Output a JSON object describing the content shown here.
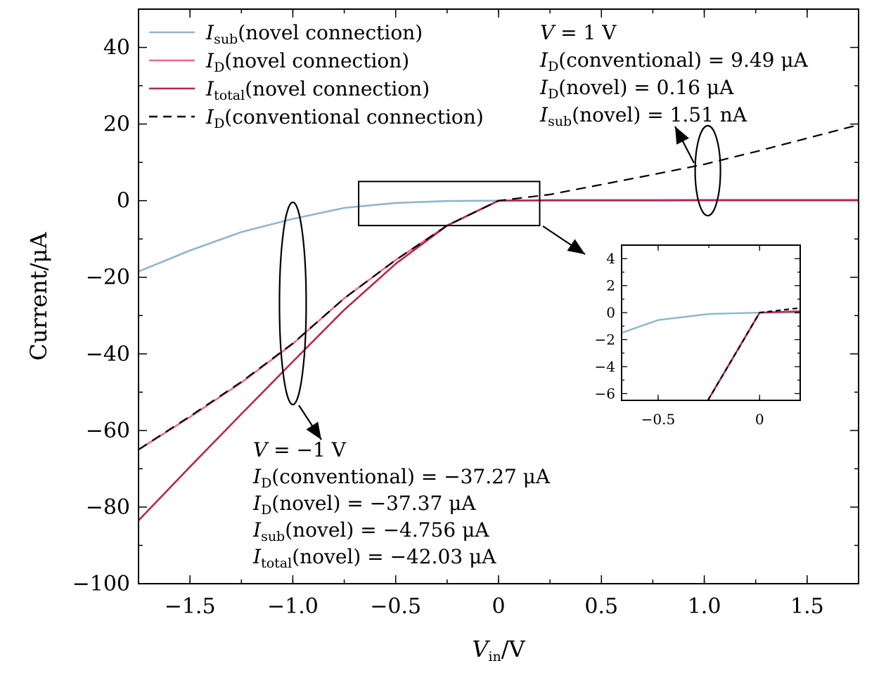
{
  "chart_data": [
    {
      "type": "line",
      "xlabel": {
        "main": "V",
        "sub": "in",
        "rest": "/V"
      },
      "ylabel": "Current/μA",
      "xlim": [
        -1.75,
        1.75
      ],
      "ylim": [
        -100,
        50
      ],
      "x_ticks": [
        -1.5,
        -1.0,
        -0.5,
        0,
        0.5,
        1.0,
        1.5
      ],
      "x_tick_labels": [
        "−1.5",
        "−1.0",
        "−0.5",
        "0",
        "0.5",
        "1.0",
        "1.5"
      ],
      "y_ticks": [
        -100,
        -80,
        -60,
        -40,
        -20,
        0,
        20,
        40
      ],
      "y_tick_labels": [
        "−100",
        "−80",
        "−60",
        "−40",
        "−20",
        "0",
        "20",
        "40"
      ],
      "legend_position": "top-left",
      "series": [
        {
          "id": "isub",
          "label": {
            "main": "I",
            "sub": "sub",
            "rest": "(novel connection)"
          },
          "color": "#8fb6cc",
          "dash": "solid",
          "x": [
            -1.75,
            -1.5,
            -1.25,
            -1.0,
            -0.75,
            -0.5,
            -0.25,
            0,
            0.25,
            0.5,
            0.75,
            1.0,
            1.25,
            1.5,
            1.75
          ],
          "y": [
            -18.5,
            -13.0,
            -8.2,
            -4.756,
            -1.9,
            -0.6,
            -0.1,
            0,
            0,
            0,
            0,
            0,
            0,
            0,
            0
          ]
        },
        {
          "id": "id_novel",
          "label": {
            "main": "I",
            "sub": "D",
            "rest": "(novel connection)"
          },
          "color": "#ec6a8c",
          "dash": "solid",
          "x": [
            -1.75,
            -1.5,
            -1.25,
            -1.0,
            -0.75,
            -0.5,
            -0.25,
            0,
            0.25,
            0.5,
            0.75,
            1.0,
            1.25,
            1.5,
            1.75
          ],
          "y": [
            -65.0,
            -56.5,
            -47.5,
            -37.37,
            -25.5,
            -15.5,
            -6.5,
            0,
            0.1,
            0.1,
            0.1,
            0.16,
            0.16,
            0.16,
            0.16
          ]
        },
        {
          "id": "itotal",
          "label": {
            "main": "I",
            "sub": "total",
            "rest": "(novel connection)"
          },
          "color": "#b8264f",
          "dash": "solid",
          "x": [
            -1.75,
            -1.5,
            -1.25,
            -1.0,
            -0.75,
            -0.5,
            -0.25,
            0,
            0.25,
            0.5,
            0.75,
            1.0,
            1.25,
            1.5,
            1.75
          ],
          "y": [
            -83.5,
            -69.5,
            -55.7,
            -42.03,
            -28.5,
            -16.5,
            -6.5,
            0,
            0.1,
            0.1,
            0.1,
            0.16,
            0.16,
            0.16,
            0.16
          ]
        },
        {
          "id": "id_conv",
          "label": {
            "main": "I",
            "sub": "D",
            "rest": "(conventional connection)"
          },
          "color": "#000000",
          "dash": "dashed",
          "x": [
            -1.75,
            -1.5,
            -1.25,
            -1.0,
            -0.75,
            -0.5,
            -0.25,
            0,
            0.25,
            0.5,
            0.75,
            1.0,
            1.25,
            1.5,
            1.75
          ],
          "y": [
            -65.0,
            -56.3,
            -47.3,
            -37.27,
            -25.5,
            -15.5,
            -6.5,
            0,
            1.6,
            4.2,
            6.8,
            9.49,
            12.8,
            16.3,
            19.8
          ]
        }
      ],
      "annotations": {
        "right_block": {
          "lines": [
            {
              "main": "V",
              "sub": "",
              "rest": " = 1 V"
            },
            {
              "main": "I",
              "sub": "D",
              "rest": "(conventional) = 9.49 μA"
            },
            {
              "main": "I",
              "sub": "D",
              "rest": "(novel) = 0.16 μA"
            },
            {
              "main": "I",
              "sub": "sub",
              "rest": "(novel) = 1.51 nA"
            }
          ]
        },
        "left_block": {
          "lines": [
            {
              "main": "V",
              "sub": "",
              "rest": " = −1 V"
            },
            {
              "main": "I",
              "sub": "D",
              "rest": "(conventional) = −37.27 μA"
            },
            {
              "main": "I",
              "sub": "D",
              "rest": "(novel) = −37.37 μA"
            },
            {
              "main": "I",
              "sub": "sub",
              "rest": "(novel) = −4.756 μA"
            },
            {
              "main": "I",
              "sub": "total",
              "rest": "(novel) = −42.03 μA"
            }
          ]
        },
        "zoom_box": {
          "x": [
            -0.68,
            0.2
          ],
          "y": [
            -6.5,
            5.0
          ]
        }
      }
    },
    {
      "type": "line",
      "role": "inset",
      "xlim": [
        -0.68,
        0.2
      ],
      "ylim": [
        -6.5,
        5.0
      ],
      "x_ticks": [
        -0.5,
        0
      ],
      "x_tick_labels": [
        "−0.5",
        "0"
      ],
      "y_ticks": [
        -6,
        -4,
        -2,
        0,
        2,
        4
      ],
      "y_tick_labels": [
        "−6",
        "−4",
        "−2",
        "0",
        "2",
        "4"
      ],
      "series": [
        {
          "id": "isub",
          "color": "#8fb6cc",
          "dash": "solid",
          "x": [
            -0.68,
            -0.5,
            -0.25,
            0,
            0.2
          ],
          "y": [
            -1.5,
            -0.55,
            -0.1,
            0,
            0
          ]
        },
        {
          "id": "id_novel",
          "color": "#ec6a8c",
          "dash": "solid",
          "x": [
            -0.255,
            0,
            0.2
          ],
          "y": [
            -6.5,
            0,
            0.1
          ]
        },
        {
          "id": "itotal",
          "color": "#b8264f",
          "dash": "solid",
          "x": [
            -0.255,
            0,
            0.2
          ],
          "y": [
            -6.5,
            0,
            0.1
          ]
        },
        {
          "id": "id_conv",
          "color": "#000000",
          "dash": "dashed",
          "x": [
            -0.255,
            0,
            0.2
          ],
          "y": [
            -6.5,
            0,
            0.35
          ]
        }
      ]
    }
  ]
}
